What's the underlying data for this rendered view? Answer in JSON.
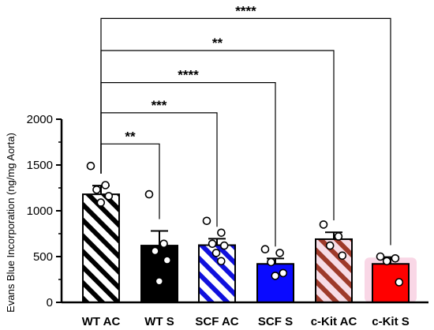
{
  "chart_data": {
    "type": "bar",
    "title": "",
    "xlabel": "",
    "ylabel": "Evans Blue Incorporation (ng/mg Aorta)",
    "ylim": [
      0,
      2000
    ],
    "yticks": [
      0,
      500,
      1000,
      1500,
      2000
    ],
    "grid": false,
    "categories": [
      "WT AC",
      "WT S",
      "SCF AC",
      "SCF S",
      "c-Kit AC",
      "c-Kit S"
    ],
    "values": [
      1180,
      620,
      625,
      420,
      690,
      420
    ],
    "errors": [
      95,
      160,
      70,
      60,
      75,
      75
    ],
    "points": [
      [
        1490,
        1280,
        1230,
        1160,
        1090
      ],
      [
        1180,
        640,
        560,
        460,
        230
      ],
      [
        890,
        760,
        640,
        620,
        540,
        450
      ],
      [
        580,
        540,
        440,
        320,
        290
      ],
      [
        850,
        720,
        620,
        510
      ],
      [
        500,
        480,
        450,
        220
      ]
    ],
    "bar_styles": [
      {
        "fill": "#ffffff",
        "stripe": "#000000",
        "pattern": "hatch"
      },
      {
        "fill": "#000000",
        "stripe": "",
        "pattern": "solid"
      },
      {
        "fill": "#ffffff",
        "stripe": "#1010dd",
        "pattern": "hatch"
      },
      {
        "fill": "#0a0aff",
        "stripe": "",
        "pattern": "solid"
      },
      {
        "fill": "#f7dce6",
        "stripe": "#9e3a2a",
        "pattern": "hatch"
      },
      {
        "fill": "#ff0000",
        "stripe": "",
        "pattern": "solid",
        "glow": "#f6c6dc"
      }
    ],
    "comparisons": [
      {
        "from": 0,
        "to": 1,
        "y": 1730,
        "label": "**"
      },
      {
        "from": 0,
        "to": 2,
        "y": 2070,
        "label": "***"
      },
      {
        "from": 0,
        "to": 3,
        "y": 2400,
        "label": "****"
      },
      {
        "from": 0,
        "to": 4,
        "y": 2750,
        "label": "**"
      },
      {
        "from": 0,
        "to": 5,
        "y": 3100,
        "label": "****"
      }
    ]
  }
}
